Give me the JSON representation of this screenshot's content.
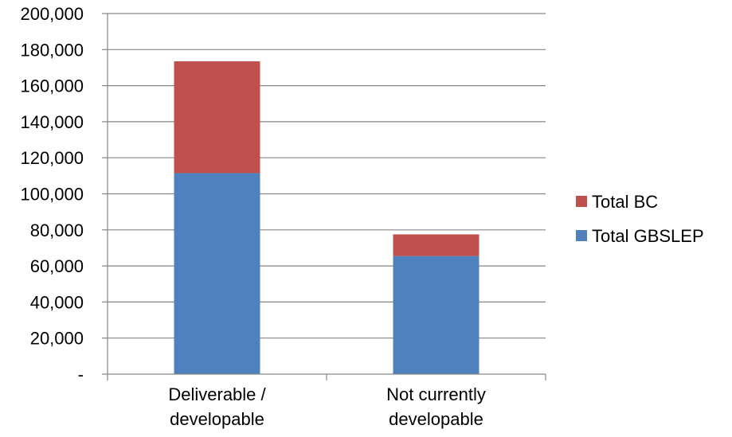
{
  "chart_data": {
    "type": "bar",
    "stacked": true,
    "categories": [
      [
        "Deliverable /",
        "developable"
      ],
      [
        "Not currently",
        "developable"
      ]
    ],
    "series": [
      {
        "name": "Total GBSLEP",
        "values": [
          111500,
          65500
        ],
        "color": "#4f81bd"
      },
      {
        "name": "Total BC",
        "values": [
          62000,
          12000
        ],
        "color": "#c0504d"
      }
    ],
    "ylim": [
      0,
      200000
    ],
    "yticks": [
      0,
      20000,
      40000,
      60000,
      80000,
      100000,
      120000,
      140000,
      160000,
      180000,
      200000
    ],
    "ytick_labels": [
      "-",
      "20,000",
      "40,000",
      "60,000",
      "80,000",
      "100,000",
      "120,000",
      "140,000",
      "160,000",
      "180,000",
      "200,000"
    ],
    "grid": true,
    "legend": {
      "position": "right",
      "entries": [
        {
          "label": "Total BC",
          "color": "#c0504d"
        },
        {
          "label": "Total GBSLEP",
          "color": "#4f81bd"
        }
      ]
    },
    "colors": {
      "gridline": "#868686",
      "axis": "#868686"
    }
  }
}
